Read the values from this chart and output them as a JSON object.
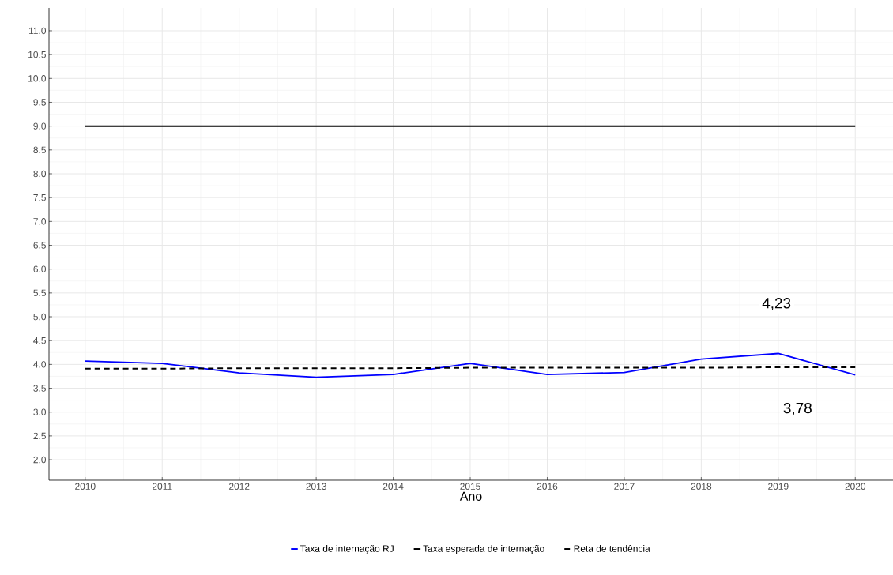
{
  "chart_data": {
    "type": "line",
    "xlabel": "Ano",
    "x": [
      2010,
      2011,
      2012,
      2013,
      2014,
      2015,
      2016,
      2017,
      2018,
      2019,
      2020
    ],
    "series": [
      {
        "name": "Taxa de internação RJ",
        "color": "#0000ff",
        "values": [
          4.07,
          4.02,
          3.82,
          3.73,
          3.79,
          4.02,
          3.79,
          3.83,
          4.11,
          4.23,
          3.78
        ]
      },
      {
        "name": "Taxa esperada de internação",
        "color": "#000000",
        "values": [
          9.0,
          9.0,
          9.0,
          9.0,
          9.0,
          9.0,
          9.0,
          9.0,
          9.0,
          9.0,
          9.0
        ]
      },
      {
        "name": "Reta de tendência",
        "color": "#000000",
        "line_style": "dashed",
        "values": [
          3.91,
          3.91,
          3.92,
          3.92,
          3.92,
          3.93,
          3.93,
          3.93,
          3.93,
          3.94,
          3.94
        ]
      }
    ],
    "xlim": [
      2009.53,
      2020.49
    ],
    "ylim": [
      1.57,
      11.48
    ],
    "xticks": [
      2010,
      2011,
      2012,
      2013,
      2014,
      2015,
      2016,
      2017,
      2018,
      2019,
      2020
    ],
    "yticks": [
      {
        "value": 2,
        "label": "2.0"
      },
      {
        "value": 2.5,
        "label": "2.5"
      },
      {
        "value": 3,
        "label": "3.0"
      },
      {
        "value": 3.5,
        "label": "3.5"
      },
      {
        "value": 4,
        "label": "4.0"
      },
      {
        "value": 4.5,
        "label": "4.5"
      },
      {
        "value": 5,
        "label": "5.0"
      },
      {
        "value": 5.5,
        "label": "5.5"
      },
      {
        "value": 6,
        "label": "6.0"
      },
      {
        "value": 6.5,
        "label": "6.5"
      },
      {
        "value": 7,
        "label": "7.0"
      },
      {
        "value": 7.5,
        "label": "7.5"
      },
      {
        "value": 8,
        "label": "8.0"
      },
      {
        "value": 8.5,
        "label": "8.5"
      },
      {
        "value": 9,
        "label": "9.0"
      },
      {
        "value": 9.5,
        "label": "9.5"
      },
      {
        "value": 10,
        "label": "10.0"
      },
      {
        "value": 10.5,
        "label": "10.5"
      },
      {
        "value": 11,
        "label": "11.0"
      }
    ],
    "annotations": [
      "4,23",
      "3,78"
    ],
    "grid": true,
    "legend": "bottom",
    "marker": "none"
  }
}
